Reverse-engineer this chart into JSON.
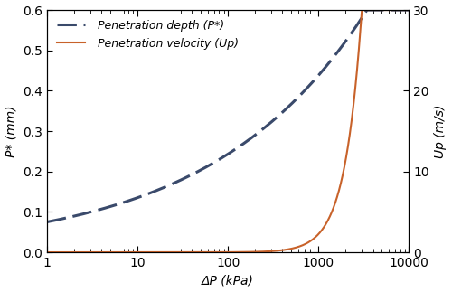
{
  "title": "",
  "xlabel": "ΔP (kPa)",
  "ylabel_left": "P* (mm)",
  "ylabel_right": "Up (m/s)",
  "legend_depth": " Penetration depth (P*)",
  "legend_velocity": " Penetration velocity (Up)",
  "xlim": [
    1,
    10000
  ],
  "ylim_left": [
    0,
    0.6
  ],
  "ylim_right": [
    0,
    30
  ],
  "depth_color": "#3a4a6b",
  "velocity_color": "#c8622a",
  "background_color": "#ffffff",
  "figsize": [
    5.0,
    3.23
  ],
  "dpi": 100,
  "depth_exponent": 0.22,
  "depth_scale": 0.075,
  "velocity_exponent": 2.5,
  "velocity_scale": 3e-08
}
